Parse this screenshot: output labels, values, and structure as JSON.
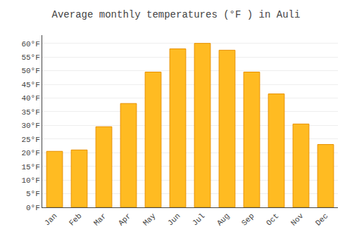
{
  "chart_data": {
    "type": "bar",
    "title": "Average monthly temperatures (°F ) in Auli",
    "categories": [
      "Jan",
      "Feb",
      "Mar",
      "Apr",
      "May",
      "Jun",
      "Jul",
      "Aug",
      "Sep",
      "Oct",
      "Nov",
      "Dec"
    ],
    "values": [
      20.5,
      21.0,
      29.5,
      38.0,
      49.5,
      58.0,
      60.0,
      57.5,
      49.5,
      41.5,
      30.5,
      23.0
    ],
    "color": "#FFBB22",
    "ylim": [
      0,
      63
    ],
    "yticks": [
      {
        "value": 0,
        "label": "0°F"
      },
      {
        "value": 5,
        "label": "5°F"
      },
      {
        "value": 10,
        "label": "10°F"
      },
      {
        "value": 15,
        "label": "15°F"
      },
      {
        "value": 20,
        "label": "20°F"
      },
      {
        "value": 25,
        "label": "25°F"
      },
      {
        "value": 30,
        "label": "30°F"
      },
      {
        "value": 35,
        "label": "35°F"
      },
      {
        "value": 40,
        "label": "40°F"
      },
      {
        "value": 45,
        "label": "45°F"
      },
      {
        "value": 50,
        "label": "50°F"
      },
      {
        "value": 55,
        "label": "55°F"
      },
      {
        "value": 60,
        "label": "60°F"
      }
    ],
    "grid": true
  }
}
